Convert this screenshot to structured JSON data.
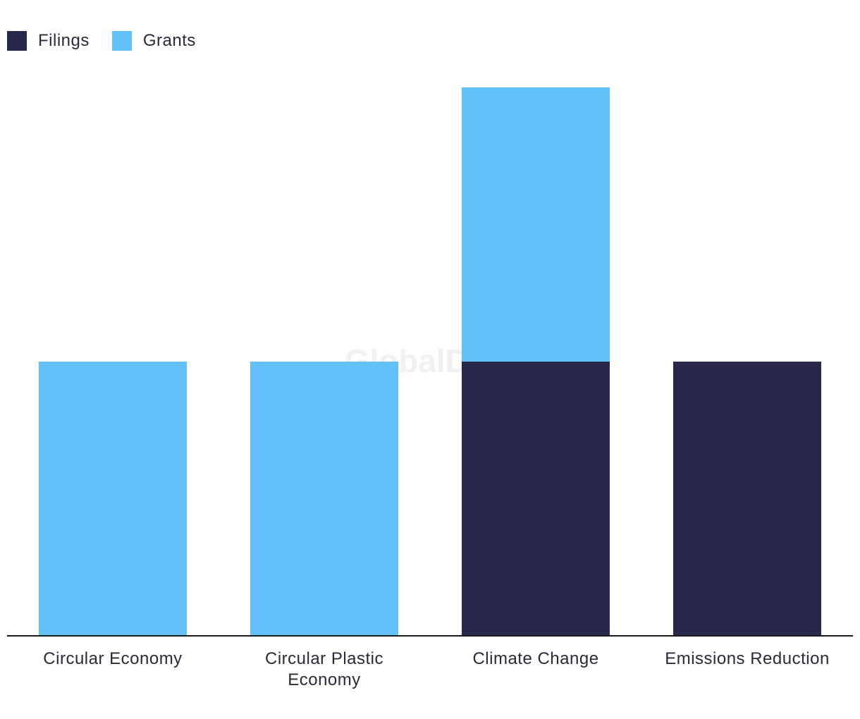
{
  "chart_data": {
    "type": "bar",
    "stacked": true,
    "categories": [
      "Circular Economy",
      "Circular Plastic Economy",
      "Climate Change",
      "Emissions Reduction"
    ],
    "category_lines": [
      [
        "Circular Economy"
      ],
      [
        "Circular Plastic",
        "Economy"
      ],
      [
        "Climate Change"
      ],
      [
        "Emissions Reduction"
      ]
    ],
    "series": [
      {
        "name": "Filings",
        "color": "#28284c",
        "values": [
          0,
          0,
          1,
          1
        ]
      },
      {
        "name": "Grants",
        "color": "#62c1f8",
        "values": [
          1,
          1,
          1,
          0
        ]
      }
    ],
    "ylim": [
      0,
      2
    ],
    "grid": false,
    "legend_position": "top-left",
    "watermark": "GlobalData"
  }
}
